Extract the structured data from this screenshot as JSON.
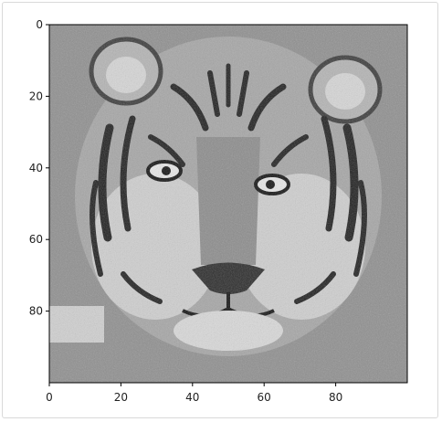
{
  "chart_data": {
    "type": "heatmap",
    "title": "",
    "xlabel": "",
    "ylabel": "",
    "xlim": [
      0,
      100
    ],
    "ylim": [
      100,
      0
    ],
    "y_inverted": true,
    "image": "grayscale photograph of a tiger face",
    "colormap": "gray",
    "grid": false,
    "x_ticks": [
      {
        "value": 0,
        "label": "0"
      },
      {
        "value": 20,
        "label": "20"
      },
      {
        "value": 40,
        "label": "40"
      },
      {
        "value": 60,
        "label": "60"
      },
      {
        "value": 80,
        "label": "80"
      }
    ],
    "y_ticks": [
      {
        "value": 0,
        "label": "0"
      },
      {
        "value": 20,
        "label": "20"
      },
      {
        "value": 40,
        "label": "40"
      },
      {
        "value": 60,
        "label": "60"
      },
      {
        "value": 80,
        "label": "80"
      }
    ]
  }
}
